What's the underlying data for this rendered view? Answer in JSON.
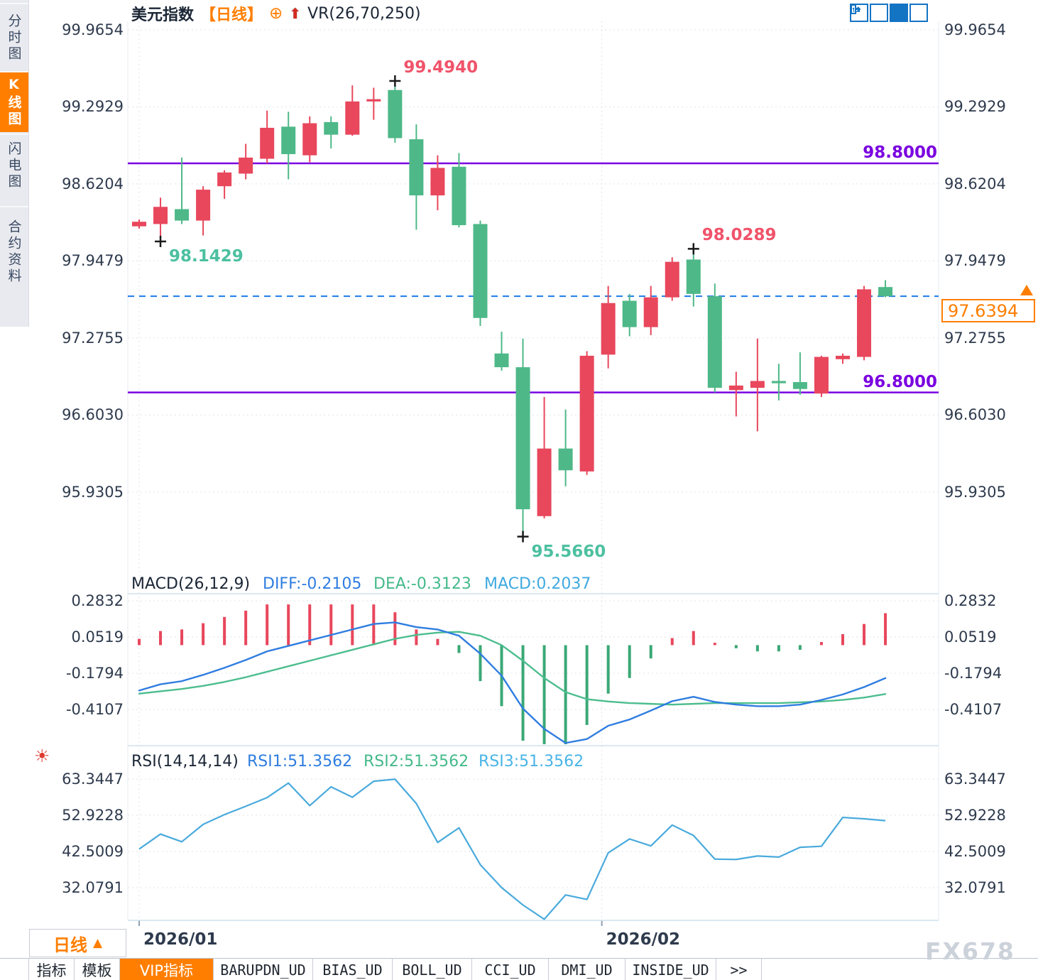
{
  "sidebar": {
    "tabs": [
      {
        "label": "分时图",
        "active": false
      },
      {
        "label": "K线图",
        "active": true
      },
      {
        "label": "闪电图",
        "active": false
      },
      {
        "label": "合约资料",
        "active": false
      }
    ]
  },
  "header": {
    "title": "美元指数",
    "period_tag": "【日线】",
    "add_icon": "⊕",
    "up_arrow": "⬆",
    "indicator": "VR(26,70,250)"
  },
  "toolbar": {
    "icons": [
      "crosshair-icon",
      "axis-scale-icon",
      "axis-play-icon",
      "exit-right-icon"
    ]
  },
  "colors": {
    "up": "#e8475c",
    "down": "#4eb888",
    "support": "#7a00e0",
    "price_line": "#1b7ae8",
    "accent": "#ff7e00",
    "diff": "#2f7de0",
    "dea": "#4cbd8e",
    "rsi": "#49aadc",
    "hist_up": "#e8475c",
    "hist_down": "#3aa876",
    "grid": "#dfe3e9",
    "border": "#cfe0ee"
  },
  "chart_data": {
    "type": "candlestick",
    "symbol": "美元指数",
    "period": "日线",
    "ohlc_order": "[open, high, low, close]",
    "main_y_axis": [
      "99.9654",
      "99.2929",
      "98.6204",
      "97.9479",
      "97.2755",
      "96.6030",
      "95.9305"
    ],
    "candles": [
      [
        98.25,
        98.31,
        98.23,
        98.29
      ],
      [
        98.27,
        98.5,
        98.1429,
        98.42
      ],
      [
        98.4,
        98.85,
        98.27,
        98.3
      ],
      [
        98.3,
        98.6,
        98.17,
        98.57
      ],
      [
        98.6,
        98.74,
        98.49,
        98.72
      ],
      [
        98.71,
        98.97,
        98.66,
        98.85
      ],
      [
        98.84,
        99.26,
        98.8,
        99.11
      ],
      [
        99.12,
        99.25,
        98.66,
        98.88
      ],
      [
        98.87,
        99.21,
        98.81,
        99.15
      ],
      [
        99.16,
        99.21,
        98.93,
        99.05
      ],
      [
        99.05,
        99.48,
        99.04,
        99.34
      ],
      [
        99.34,
        99.46,
        99.18,
        99.36
      ],
      [
        99.44,
        99.494,
        98.98,
        99.02
      ],
      [
        99.01,
        99.14,
        98.22,
        98.52
      ],
      [
        98.52,
        98.87,
        98.39,
        98.76
      ],
      [
        98.77,
        98.89,
        98.24,
        98.26
      ],
      [
        98.27,
        98.3,
        97.38,
        97.45
      ],
      [
        97.14,
        97.33,
        96.99,
        97.02
      ],
      [
        97.02,
        97.27,
        95.566,
        95.78
      ],
      [
        95.72,
        96.76,
        95.7,
        96.31
      ],
      [
        96.31,
        96.65,
        95.98,
        96.12
      ],
      [
        96.11,
        97.16,
        96.08,
        97.12
      ],
      [
        97.13,
        97.73,
        97.01,
        97.58
      ],
      [
        97.6,
        97.66,
        97.29,
        97.37
      ],
      [
        97.37,
        97.73,
        97.3,
        97.63
      ],
      [
        97.63,
        97.98,
        97.6,
        97.94
      ],
      [
        97.96,
        98.0289,
        97.55,
        97.66
      ],
      [
        97.64,
        97.75,
        96.8,
        96.84
      ],
      [
        96.82,
        96.98,
        96.59,
        96.86
      ],
      [
        96.84,
        97.27,
        96.46,
        96.9
      ],
      [
        96.9,
        97.05,
        96.73,
        96.88
      ],
      [
        96.89,
        97.15,
        96.78,
        96.83
      ],
      [
        96.79,
        97.12,
        96.76,
        97.11
      ],
      [
        97.09,
        97.14,
        97.05,
        97.12
      ],
      [
        97.11,
        97.73,
        97.08,
        97.7
      ],
      [
        97.72,
        97.78,
        97.63,
        97.6394
      ]
    ],
    "x_labels": [
      {
        "text": "2026/01",
        "candle": 1
      },
      {
        "text": "2026/02",
        "candle": 22.7
      }
    ],
    "macd": {
      "label": "MACD(26,12,9)",
      "diff_label": "DIFF:-0.2105",
      "dea_label": "DEA:-0.3123",
      "macd_label": "MACD:0.2037",
      "y_axis": [
        "0.2832",
        "0.0519",
        "-0.1794",
        "-0.4107"
      ],
      "diff": [
        -0.29,
        -0.25,
        -0.23,
        -0.19,
        -0.145,
        -0.095,
        -0.04,
        -0.005,
        0.03,
        0.065,
        0.1,
        0.135,
        0.145,
        0.115,
        0.1,
        0.06,
        -0.055,
        -0.195,
        -0.405,
        -0.535,
        -0.625,
        -0.6,
        -0.515,
        -0.475,
        -0.418,
        -0.358,
        -0.33,
        -0.363,
        -0.38,
        -0.39,
        -0.39,
        -0.38,
        -0.35,
        -0.315,
        -0.268,
        -0.2105
      ],
      "dea": [
        -0.31,
        -0.295,
        -0.28,
        -0.26,
        -0.235,
        -0.205,
        -0.17,
        -0.135,
        -0.1,
        -0.065,
        -0.03,
        0.005,
        0.04,
        0.065,
        0.08,
        0.085,
        0.06,
        0.0,
        -0.1,
        -0.21,
        -0.3,
        -0.345,
        -0.36,
        -0.37,
        -0.375,
        -0.38,
        -0.375,
        -0.37,
        -0.37,
        -0.37,
        -0.37,
        -0.365,
        -0.36,
        -0.35,
        -0.335,
        -0.3123
      ],
      "hist": [
        0.04,
        0.09,
        0.1,
        0.14,
        0.18,
        0.22,
        0.26,
        0.26,
        0.26,
        0.26,
        0.26,
        0.26,
        0.21,
        0.1,
        0.04,
        -0.05,
        -0.23,
        -0.39,
        -0.61,
        -0.65,
        -0.65,
        -0.51,
        -0.31,
        -0.21,
        -0.085,
        0.045,
        0.09,
        0.015,
        -0.02,
        -0.04,
        -0.04,
        -0.03,
        0.02,
        0.07,
        0.135,
        0.2037
      ]
    },
    "rsi": {
      "label": "RSI(14,14,14)",
      "rsi1_label": "RSI1:51.3562",
      "rsi2_label": "RSI2:51.3562",
      "rsi3_label": "RSI3:51.3562",
      "y_axis": [
        "63.3447",
        "52.9228",
        "42.5009",
        "32.0791"
      ],
      "values": [
        43.2,
        47.5,
        45.3,
        50.3,
        53.1,
        55.5,
        58.0,
        62.2,
        55.7,
        61.1,
        58.1,
        62.7,
        63.3,
        56.3,
        45.1,
        49.3,
        38.7,
        32.1,
        27.1,
        23.0,
        30.0,
        28.7,
        42.1,
        46.1,
        44.1,
        50.1,
        47.1,
        40.3,
        40.2,
        41.2,
        40.9,
        43.7,
        44.0,
        52.3,
        51.9,
        51.36
      ]
    }
  },
  "main_chart": {
    "support_lines": [
      {
        "label": "98.8000",
        "value": 98.8
      },
      {
        "label": "96.8000",
        "value": 96.8
      }
    ],
    "current_price": {
      "label": "97.6394",
      "value": 97.6394
    },
    "annotations": [
      {
        "text": "99.4940",
        "candle": 13,
        "value": 99.494,
        "placement": "above",
        "color": "#f0536a"
      },
      {
        "text": "98.1429",
        "candle": 2,
        "value": 98.1429,
        "placement": "below",
        "color": "#4cc0a0"
      },
      {
        "text": "95.5660",
        "candle": 19,
        "value": 95.566,
        "placement": "below",
        "color": "#4cc0a0"
      },
      {
        "text": "98.0289",
        "candle": 27,
        "value": 98.0289,
        "placement": "above",
        "color": "#f0536a"
      }
    ]
  },
  "period_selector": {
    "label": "日线",
    "arrow": "▲"
  },
  "bottom_tabs": {
    "items": [
      {
        "label": "指标",
        "active": false,
        "mono": false
      },
      {
        "label": "模板",
        "active": false,
        "mono": false
      },
      {
        "label": "VIP指标",
        "active": true,
        "mono": false
      },
      {
        "label": "BARUPDN_UD",
        "active": false,
        "mono": true
      },
      {
        "label": "BIAS_UD",
        "active": false,
        "mono": true
      },
      {
        "label": "BOLL_UD",
        "active": false,
        "mono": true
      },
      {
        "label": "CCI_UD",
        "active": false,
        "mono": true
      },
      {
        "label": "DMI_UD",
        "active": false,
        "mono": true
      },
      {
        "label": "INSIDE_UD",
        "active": false,
        "mono": true
      },
      {
        "label": ">>",
        "active": false,
        "mono": true
      }
    ]
  },
  "watermark": "FX678"
}
